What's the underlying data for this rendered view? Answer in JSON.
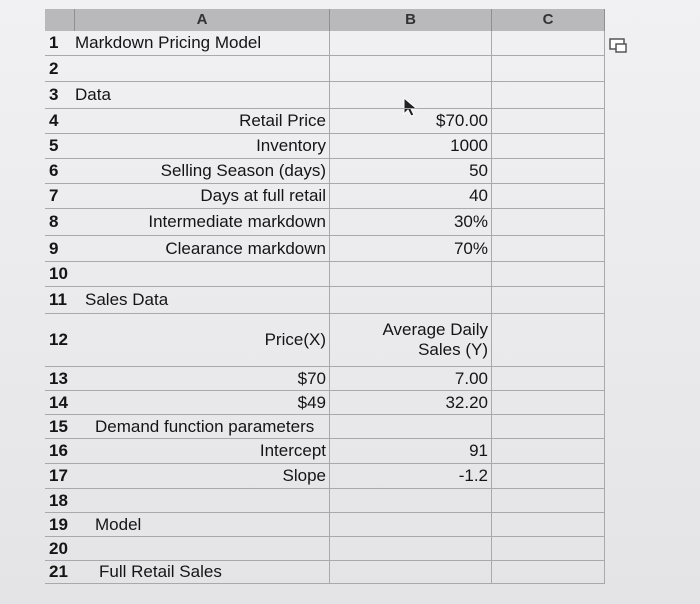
{
  "sheet": {
    "columns": [
      "A",
      "B",
      "C"
    ],
    "rows": [
      {
        "number": "1",
        "a": "Markdown Pricing Model"
      },
      {
        "number": "2"
      },
      {
        "number": "3",
        "a": "Data"
      },
      {
        "number": "4",
        "a": "Retail Price",
        "b": "$70.00"
      },
      {
        "number": "5",
        "a": "Inventory",
        "b": "1000"
      },
      {
        "number": "6",
        "a": "Selling Season (days)",
        "b": "50"
      },
      {
        "number": "7",
        "a": "Days at full retail",
        "b": "40"
      },
      {
        "number": "8",
        "a": "Intermediate markdown",
        "b": "30%"
      },
      {
        "number": "9",
        "a": "Clearance markdown",
        "b": "70%"
      },
      {
        "number": "10"
      },
      {
        "number": "11",
        "a": "Sales Data"
      },
      {
        "number": "12",
        "a": "Price(X)",
        "b": "Average Daily Sales (Y)"
      },
      {
        "number": "13",
        "a": "$70",
        "b": "7.00"
      },
      {
        "number": "14",
        "a": "$49",
        "b": "32.20"
      },
      {
        "number": "15",
        "a": "Demand function parameters"
      },
      {
        "number": "16",
        "a": "Intercept",
        "b": "91"
      },
      {
        "number": "17",
        "a": "Slope",
        "b": "-1.2"
      },
      {
        "number": "18"
      },
      {
        "number": "19",
        "a": "Model"
      },
      {
        "number": "20"
      },
      {
        "number": "21",
        "a": "Full Retail Sales"
      }
    ]
  }
}
